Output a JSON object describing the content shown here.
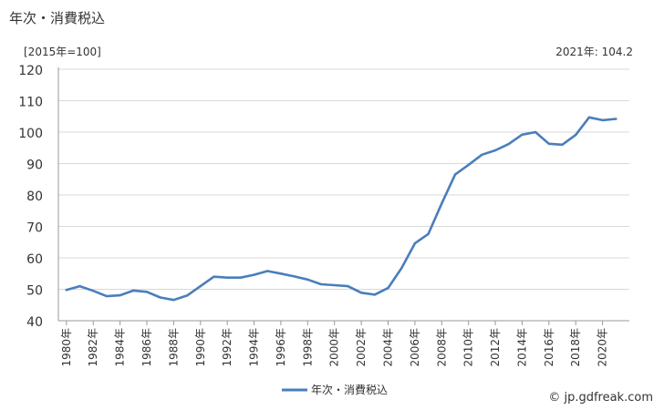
{
  "title": "年次・消費税込",
  "unit_label": "[2015年=100]",
  "latest_label": "2021年: 104.2",
  "source": "© jp.gdfreak.com",
  "chart_data": {
    "type": "line",
    "title": "年次・消費税込",
    "xlabel": "",
    "ylabel": "[2015年=100]",
    "ylim": [
      40,
      120
    ],
    "yticks": [
      40,
      50,
      60,
      70,
      80,
      90,
      100,
      110,
      120
    ],
    "xtick_labels": [
      "1980年",
      "1982年",
      "1984年",
      "1986年",
      "1988年",
      "1990年",
      "1992年",
      "1994年",
      "1996年",
      "1998年",
      "2000年",
      "2002年",
      "2004年",
      "2006年",
      "2008年",
      "2010年",
      "2012年",
      "2014年",
      "2016年",
      "2018年",
      "2020年"
    ],
    "grid": true,
    "legend_position": "bottom",
    "color": "#4a7ebb",
    "series": [
      {
        "name": "年次・消費税込",
        "x": [
          1980,
          1981,
          1982,
          1983,
          1984,
          1985,
          1986,
          1987,
          1988,
          1989,
          1990,
          1991,
          1992,
          1993,
          1994,
          1995,
          1996,
          1997,
          1998,
          1999,
          2000,
          2001,
          2002,
          2003,
          2004,
          2005,
          2006,
          2007,
          2008,
          2009,
          2010,
          2011,
          2012,
          2013,
          2014,
          2015,
          2016,
          2017,
          2018,
          2019,
          2020,
          2021
        ],
        "values": [
          49.8,
          51.0,
          49.5,
          47.8,
          48.1,
          49.6,
          49.2,
          47.4,
          46.6,
          48.0,
          51.0,
          54.0,
          53.7,
          53.7,
          54.6,
          55.8,
          55.0,
          54.1,
          53.1,
          51.6,
          51.3,
          51.0,
          48.9,
          48.3,
          50.4,
          56.7,
          64.6,
          67.6,
          77.3,
          86.5,
          89.6,
          92.8,
          94.2,
          96.2,
          99.2,
          100.0,
          96.3,
          96.0,
          99.1,
          104.7,
          103.8,
          104.2
        ]
      }
    ]
  }
}
